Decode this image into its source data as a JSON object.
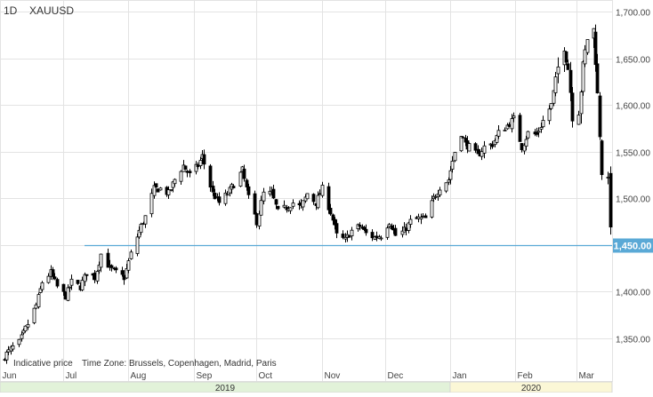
{
  "header": {
    "interval": "1D",
    "symbol": "XAUUSD"
  },
  "footer": {
    "indicative": "Indicative price",
    "timezone": "Time Zone: Brussels, Copenhagen, Madrid, Paris"
  },
  "colors": {
    "grid": "#e3e3e3",
    "candle": "#000000",
    "hline": "#5aa9d6",
    "price_tag_bg": "#5aa9d6",
    "year_2019_bg": "#e2f2d9",
    "year_2020_bg": "#fbf7d6"
  },
  "chart_data": {
    "type": "candlestick",
    "title": "XAUUSD",
    "interval": "1D",
    "ylim": [
      1320,
      1705
    ],
    "y_axis_position": "right",
    "yticks": [
      "1,350.00",
      "1,400.00",
      "1,450.00",
      "1,500.00",
      "1,550.00",
      "1,600.00",
      "1,650.00",
      "1,700.00"
    ],
    "ytick_values": [
      1350,
      1400,
      1450,
      1500,
      1550,
      1600,
      1650,
      1700
    ],
    "xlim": [
      "2019-06-01",
      "2020-03-18"
    ],
    "xticks": [
      {
        "label": "Jun",
        "date": "2019-06-01"
      },
      {
        "label": "Jul",
        "date": "2019-07-01"
      },
      {
        "label": "Aug",
        "date": "2019-08-01"
      },
      {
        "label": "Sep",
        "date": "2019-09-01"
      },
      {
        "label": "Oct",
        "date": "2019-10-01"
      },
      {
        "label": "Nov",
        "date": "2019-11-01"
      },
      {
        "label": "Dec",
        "date": "2019-12-01"
      },
      {
        "label": "Jan",
        "date": "2020-01-01"
      },
      {
        "label": "Feb",
        "date": "2020-02-01"
      },
      {
        "label": "Mar",
        "date": "2020-03-01"
      }
    ],
    "years": [
      {
        "label": "2019",
        "start": "2019-06-01",
        "end": "2020-01-01"
      },
      {
        "label": "2020",
        "start": "2020-01-01",
        "end": "2020-03-18"
      }
    ],
    "horizontal_line": {
      "value": 1450,
      "label": "1,450.00"
    },
    "close_path": [
      [
        "2019-06-01",
        1325
      ],
      [
        "2019-06-04",
        1333
      ],
      [
        "2019-06-07",
        1340
      ],
      [
        "2019-06-10",
        1345
      ],
      [
        "2019-06-14",
        1365
      ],
      [
        "2019-06-18",
        1385
      ],
      [
        "2019-06-21",
        1410
      ],
      [
        "2019-06-25",
        1420
      ],
      [
        "2019-06-28",
        1405
      ],
      [
        "2019-07-02",
        1395
      ],
      [
        "2019-07-05",
        1410
      ],
      [
        "2019-07-09",
        1405
      ],
      [
        "2019-07-12",
        1420
      ],
      [
        "2019-07-16",
        1415
      ],
      [
        "2019-07-19",
        1440
      ],
      [
        "2019-07-23",
        1425
      ],
      [
        "2019-07-26",
        1420
      ],
      [
        "2019-07-30",
        1415
      ],
      [
        "2019-08-02",
        1440
      ],
      [
        "2019-08-06",
        1465
      ],
      [
        "2019-08-09",
        1480
      ],
      [
        "2019-08-13",
        1510
      ],
      [
        "2019-08-16",
        1510
      ],
      [
        "2019-08-20",
        1505
      ],
      [
        "2019-08-23",
        1520
      ],
      [
        "2019-08-27",
        1535
      ],
      [
        "2019-08-30",
        1525
      ],
      [
        "2019-09-03",
        1535
      ],
      [
        "2019-09-05",
        1545
      ],
      [
        "2019-09-10",
        1505
      ],
      [
        "2019-09-13",
        1495
      ],
      [
        "2019-09-17",
        1505
      ],
      [
        "2019-09-20",
        1515
      ],
      [
        "2019-09-24",
        1530
      ],
      [
        "2019-09-27",
        1500
      ],
      [
        "2019-10-01",
        1475
      ],
      [
        "2019-10-04",
        1505
      ],
      [
        "2019-10-08",
        1505
      ],
      [
        "2019-10-11",
        1485
      ],
      [
        "2019-10-15",
        1490
      ],
      [
        "2019-10-18",
        1495
      ],
      [
        "2019-10-22",
        1490
      ],
      [
        "2019-10-25",
        1505
      ],
      [
        "2019-10-29",
        1495
      ],
      [
        "2019-11-01",
        1510
      ],
      [
        "2019-11-05",
        1485
      ],
      [
        "2019-11-08",
        1460
      ],
      [
        "2019-11-12",
        1455
      ],
      [
        "2019-11-15",
        1465
      ],
      [
        "2019-11-19",
        1470
      ],
      [
        "2019-11-22",
        1462
      ],
      [
        "2019-11-26",
        1458
      ],
      [
        "2019-11-29",
        1460
      ],
      [
        "2019-12-03",
        1475
      ],
      [
        "2019-12-06",
        1460
      ],
      [
        "2019-12-10",
        1465
      ],
      [
        "2019-12-13",
        1475
      ],
      [
        "2019-12-17",
        1478
      ],
      [
        "2019-12-20",
        1478
      ],
      [
        "2019-12-24",
        1500
      ],
      [
        "2019-12-27",
        1512
      ],
      [
        "2019-12-31",
        1520
      ],
      [
        "2020-01-03",
        1550
      ],
      [
        "2020-01-06",
        1570
      ],
      [
        "2020-01-08",
        1558
      ],
      [
        "2020-01-10",
        1555
      ],
      [
        "2020-01-14",
        1545
      ],
      [
        "2020-01-17",
        1555
      ],
      [
        "2020-01-21",
        1558
      ],
      [
        "2020-01-24",
        1570
      ],
      [
        "2020-01-28",
        1578
      ],
      [
        "2020-01-31",
        1585
      ],
      [
        "2020-02-04",
        1555
      ],
      [
        "2020-02-07",
        1570
      ],
      [
        "2020-02-11",
        1568
      ],
      [
        "2020-02-14",
        1583
      ],
      [
        "2020-02-18",
        1600
      ],
      [
        "2020-02-21",
        1640
      ],
      [
        "2020-02-24",
        1665
      ],
      [
        "2020-02-26",
        1640
      ],
      [
        "2020-02-28",
        1590
      ],
      [
        "2020-03-02",
        1595
      ],
      [
        "2020-03-04",
        1640
      ],
      [
        "2020-03-06",
        1672
      ],
      [
        "2020-03-09",
        1680
      ],
      [
        "2020-03-10",
        1650
      ],
      [
        "2020-03-12",
        1570
      ],
      [
        "2020-03-13",
        1530
      ],
      [
        "2020-03-16",
        1515
      ],
      [
        "2020-03-17",
        1475
      ]
    ]
  }
}
